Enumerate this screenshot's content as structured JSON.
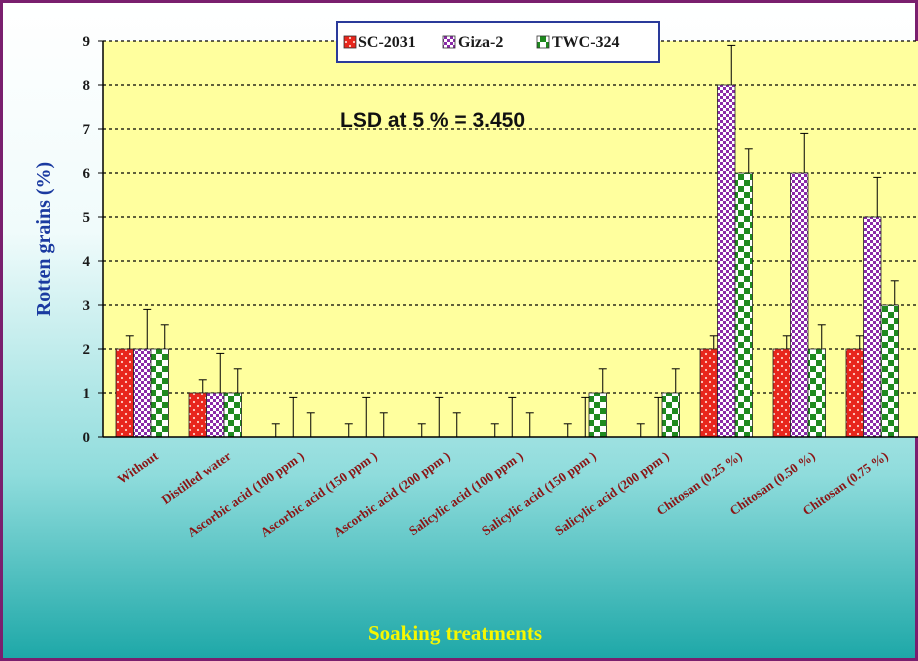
{
  "chart_data": {
    "type": "bar",
    "ylabel": "Rotten grains  (%)",
    "xlabel": "Soaking  treatments",
    "ylim": [
      0,
      9
    ],
    "yticks": [
      "0",
      "1",
      "2",
      "3",
      "4",
      "5",
      "6",
      "7",
      "8",
      "9"
    ],
    "grid": true,
    "legend_position": "top-center",
    "annotation": "LSD at 5 % = 3.450",
    "categories": [
      "Without",
      "Distilled water",
      "Ascorbic acid   (100  ppm )",
      "Ascorbic acid   (150  ppm )",
      "Ascorbic acid   (200  ppm )",
      "Salicylic acid    (100  ppm )",
      "Salicylic acid    (150  ppm )",
      "Salicylic acid    (200  ppm )",
      "Chitosan  (0.25 %)",
      "Chitosan  (0.50 %)",
      "Chitosan  (0.75 %)"
    ],
    "series": [
      {
        "name": "SC-2031",
        "color": "#e8261c",
        "values": [
          2,
          1,
          0,
          0,
          0,
          0,
          0,
          0,
          2,
          2,
          2
        ],
        "error": [
          0.3,
          0.3,
          0.3,
          0.3,
          0.3,
          0.3,
          0.3,
          0.3,
          0.3,
          0.3,
          0.3
        ]
      },
      {
        "name": "Giza-2",
        "color": "#8a2aa8",
        "values": [
          2,
          1,
          0,
          0,
          0,
          0,
          0,
          0,
          8,
          6,
          5
        ],
        "error": [
          0.9,
          0.9,
          0.9,
          0.9,
          0.9,
          0.9,
          0.9,
          0.9,
          0.9,
          0.9,
          0.9
        ]
      },
      {
        "name": "TWC-324",
        "color": "#1f8a1f",
        "values": [
          2,
          1,
          0,
          0,
          0,
          0,
          1,
          1,
          6,
          2,
          3
        ],
        "error": [
          0.55,
          0.55,
          0.55,
          0.55,
          0.55,
          0.55,
          0.55,
          0.55,
          0.55,
          0.55,
          0.55
        ]
      }
    ]
  }
}
